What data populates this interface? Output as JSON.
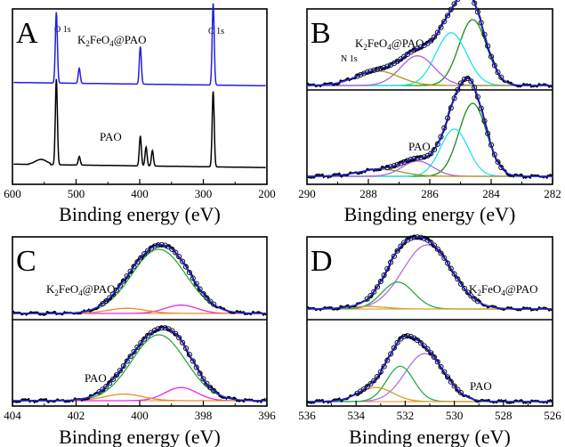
{
  "panels": [
    {
      "letter": "A",
      "xlabel": "Binding energy (eV)",
      "xlim": [
        600,
        200
      ],
      "ticks": [
        600,
        500,
        400,
        300,
        200
      ],
      "annotations": [
        "O 1s",
        "N 1s",
        "C 1s"
      ],
      "sample_labels": {
        "top": "K2FeO4@PAO",
        "bottom": "PAO"
      },
      "colors": {
        "top": "#1f1fe6",
        "bottom": "#000000"
      }
    },
    {
      "letter": "B",
      "xlabel": "Bingding energy (eV)",
      "xlim": [
        290,
        282
      ],
      "ticks": [
        290,
        288,
        286,
        284,
        282
      ],
      "sample_labels": {
        "top": "K2FeO4@PAO",
        "bottom": "PAO"
      }
    },
    {
      "letter": "C",
      "xlabel": "Binding energy (eV)",
      "xlim": [
        404,
        396
      ],
      "ticks": [
        404,
        402,
        400,
        398,
        396
      ],
      "sample_labels": {
        "top": "K2FeO4@PAO",
        "bottom": "PAO"
      }
    },
    {
      "letter": "D",
      "xlabel": "Binding energy (eV)",
      "xlim": [
        536,
        526
      ],
      "ticks": [
        536,
        534,
        532,
        530,
        528,
        526
      ],
      "sample_labels": {
        "top": "K2FeO4@PAO",
        "bottom": "PAO"
      }
    }
  ],
  "chart_data": [
    {
      "type": "line",
      "panel": "A",
      "x_label": "Binding energy (eV)",
      "x_range": [
        600,
        200
      ],
      "series": [
        {
          "name": "K2FeO4@PAO",
          "color": "#1f1fe6",
          "peaks": [
            {
              "label": "O 1s",
              "x": 531,
              "h": 0.85
            },
            {
              "x": 495,
              "h": 0.18
            },
            {
              "label": "N 1s",
              "x": 399,
              "h": 0.45
            },
            {
              "label": "C 1s",
              "x": 284.5,
              "h": 0.98
            }
          ]
        },
        {
          "name": "PAO",
          "color": "#000000",
          "peaks": [
            {
              "x": 531,
              "h": 1.0
            },
            {
              "x": 495,
              "h": 0.1
            },
            {
              "x": 399,
              "h": 0.35
            },
            {
              "x": 390,
              "h": 0.22
            },
            {
              "x": 380,
              "h": 0.18
            },
            {
              "x": 284.5,
              "h": 0.88
            }
          ]
        }
      ]
    },
    {
      "type": "line",
      "panel": "B",
      "x_label": "Bingding energy (eV)",
      "x_range": [
        290,
        282
      ],
      "series": [
        {
          "name": "K2FeO4@PAO",
          "components": [
            {
              "center": 284.6,
              "amp": 1.0,
              "width": 0.45,
              "color": "#1a8c1a"
            },
            {
              "center": 285.3,
              "amp": 0.8,
              "width": 0.5,
              "color": "#1ee6e6"
            },
            {
              "center": 286.4,
              "amp": 0.45,
              "width": 0.55,
              "color": "#b05fd6"
            },
            {
              "center": 287.7,
              "amp": 0.22,
              "width": 0.7,
              "color": "#a39a20"
            }
          ]
        },
        {
          "name": "PAO",
          "components": [
            {
              "center": 284.6,
              "amp": 1.05,
              "width": 0.45,
              "color": "#1a8c1a"
            },
            {
              "center": 285.2,
              "amp": 0.68,
              "width": 0.45,
              "color": "#1ee6e6"
            },
            {
              "center": 286.4,
              "amp": 0.22,
              "width": 0.5,
              "color": "#b05fd6"
            },
            {
              "center": 287.6,
              "amp": 0.1,
              "width": 0.7,
              "color": "#a39a20"
            }
          ]
        }
      ]
    },
    {
      "type": "line",
      "panel": "C",
      "x_label": "Binding energy (eV)",
      "x_range": [
        404,
        396
      ],
      "series": [
        {
          "name": "K2FeO4@PAO",
          "components": [
            {
              "center": 399.4,
              "amp": 1.0,
              "width": 0.85,
              "color": "#2aa84a"
            },
            {
              "center": 398.7,
              "amp": 0.13,
              "width": 0.5,
              "color": "#e62ae6"
            },
            {
              "center": 400.4,
              "amp": 0.08,
              "width": 0.6,
              "color": "#f08a24"
            }
          ]
        },
        {
          "name": "PAO",
          "components": [
            {
              "center": 399.4,
              "amp": 1.0,
              "width": 0.85,
              "color": "#2aa84a"
            },
            {
              "center": 398.7,
              "amp": 0.2,
              "width": 0.5,
              "color": "#e62ae6"
            },
            {
              "center": 400.5,
              "amp": 0.1,
              "width": 0.6,
              "color": "#f08a24"
            }
          ]
        }
      ]
    },
    {
      "type": "line",
      "panel": "D",
      "x_label": "Binding energy (eV)",
      "x_range": [
        536,
        526
      ],
      "series": [
        {
          "name": "K2FeO4@PAO",
          "components": [
            {
              "center": 531.1,
              "amp": 1.0,
              "width": 1.0,
              "color": "#b06fe0"
            },
            {
              "center": 532.3,
              "amp": 0.42,
              "width": 0.65,
              "color": "#2aa84a"
            },
            {
              "center": 533.6,
              "amp": 0.04,
              "width": 0.8,
              "color": "#d9a020"
            }
          ]
        },
        {
          "name": "PAO",
          "components": [
            {
              "center": 531.2,
              "amp": 0.75,
              "width": 0.8,
              "color": "#b06fe0"
            },
            {
              "center": 532.2,
              "amp": 0.55,
              "width": 0.55,
              "color": "#2aa84a"
            },
            {
              "center": 533.2,
              "amp": 0.22,
              "width": 0.7,
              "color": "#d9a020"
            }
          ]
        }
      ]
    }
  ]
}
